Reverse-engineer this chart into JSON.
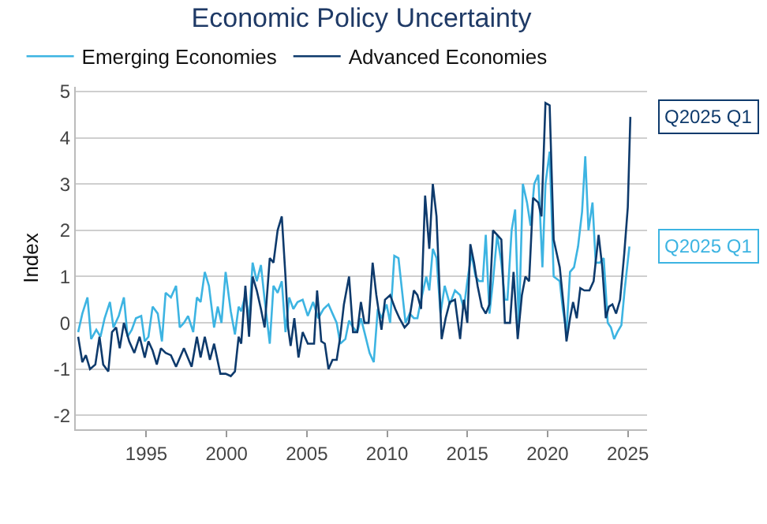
{
  "chart_data": {
    "type": "line",
    "title": "Economic Policy Uncertainty",
    "ylabel": "Index",
    "series": [
      {
        "name": "Emerging Economies",
        "color": "#3db4e2",
        "x": [
          1990.75,
          1991.01,
          1991.33,
          1991.56,
          1991.88,
          1992.14,
          1992.4,
          1992.73,
          1992.95,
          1993.28,
          1993.6,
          1993.83,
          1994.09,
          1994.35,
          1994.68,
          1994.9,
          1995.13,
          1995.39,
          1995.71,
          1995.97,
          1996.2,
          1996.53,
          1996.85,
          1997.08,
          1997.34,
          1997.6,
          1997.92,
          1998.15,
          1998.38,
          1998.64,
          1998.9,
          1999.22,
          1999.45,
          1999.68,
          1999.94,
          2000.26,
          2000.52,
          2000.75,
          2000.91,
          2001.17,
          2001.4,
          2001.62,
          2001.88,
          2002.14,
          2002.37,
          2002.69,
          2002.92,
          2003.18,
          2003.44,
          2003.67,
          2003.9,
          2004.16,
          2004.42,
          2004.74,
          2005.06,
          2005.39,
          2005.71,
          2006.04,
          2006.35,
          2006.6,
          2006.86,
          2007.08,
          2007.4,
          2007.63,
          2007.88,
          2008.14,
          2008.37,
          2008.59,
          2008.91,
          2009.17,
          2009.42,
          2009.65,
          2009.97,
          2010.19,
          2010.45,
          2010.71,
          2010.93,
          2011.15,
          2011.41,
          2011.67,
          2011.89,
          2012.12,
          2012.44,
          2012.63,
          2012.85,
          2013.08,
          2013.33,
          2013.59,
          2013.91,
          2014.23,
          2014.55,
          2014.78,
          2015.0,
          2015.26,
          2015.51,
          2015.74,
          2015.96,
          2016.15,
          2016.38,
          2016.6,
          2016.86,
          2017.12,
          2017.34,
          2017.5,
          2017.76,
          2017.98,
          2018.21,
          2018.46,
          2018.72,
          2018.94,
          2019.17,
          2019.42,
          2019.68,
          2019.87,
          2020.13,
          2020.38,
          2020.76,
          2020.95,
          2021.18,
          2021.4,
          2021.65,
          2021.9,
          2022.15,
          2022.35,
          2022.55,
          2022.8,
          2023.0,
          2023.25,
          2023.5,
          2023.75,
          2023.95,
          2024.15,
          2024.35,
          2024.6,
          2024.8,
          2025.1
        ],
        "values": [
          -0.2,
          0.2,
          0.55,
          -0.35,
          -0.15,
          -0.3,
          0.1,
          0.45,
          -0.1,
          0.15,
          0.55,
          -0.3,
          -0.15,
          0.1,
          0.15,
          -0.4,
          -0.3,
          0.35,
          0.2,
          -0.4,
          0.65,
          0.55,
          0.8,
          -0.1,
          0.0,
          0.15,
          -0.2,
          0.55,
          0.45,
          1.1,
          0.8,
          -0.1,
          0.35,
          0.0,
          1.1,
          0.25,
          -0.25,
          0.35,
          0.25,
          0.6,
          0.05,
          1.3,
          0.9,
          1.25,
          0.5,
          -0.45,
          0.8,
          0.65,
          0.9,
          -0.2,
          0.55,
          0.3,
          0.45,
          0.5,
          0.15,
          0.45,
          0.1,
          0.3,
          0.4,
          0.2,
          0.0,
          -0.45,
          -0.35,
          0.05,
          -0.1,
          -0.2,
          0.1,
          -0.2,
          -0.65,
          -0.85,
          0.3,
          0.1,
          0.4,
          0.0,
          1.45,
          1.4,
          0.7,
          0.0,
          0.2,
          0.1,
          0.1,
          0.5,
          1.0,
          0.7,
          1.6,
          1.4,
          0.2,
          0.8,
          0.4,
          0.7,
          0.6,
          0.3,
          0.9,
          1.5,
          1.0,
          0.9,
          0.9,
          1.9,
          0.2,
          0.9,
          1.9,
          1.3,
          0.5,
          0.5,
          2.0,
          2.45,
          -0.1,
          3.0,
          2.6,
          2.1,
          3.0,
          3.2,
          1.2,
          3.0,
          3.7,
          1.0,
          0.9,
          0.3,
          -0.2,
          1.1,
          1.2,
          1.65,
          2.4,
          3.6,
          2.0,
          2.6,
          1.3,
          1.3,
          1.4,
          0.0,
          -0.1,
          -0.35,
          -0.2,
          -0.05,
          0.7,
          1.65
        ]
      },
      {
        "name": "Advanced Economies",
        "color": "#0e3a6c",
        "x": [
          1990.75,
          1991.01,
          1991.23,
          1991.49,
          1991.82,
          1992.08,
          1992.31,
          1992.63,
          1992.86,
          1993.12,
          1993.34,
          1993.6,
          1993.93,
          1994.25,
          1994.58,
          1994.9,
          1995.13,
          1995.39,
          1995.65,
          1995.91,
          1996.2,
          1996.53,
          1996.85,
          1997.34,
          1997.82,
          1998.15,
          1998.38,
          1998.64,
          1998.96,
          1999.22,
          1999.61,
          1999.94,
          2000.26,
          2000.52,
          2000.75,
          2000.91,
          2001.17,
          2001.4,
          2001.62,
          2001.88,
          2002.14,
          2002.37,
          2002.69,
          2002.92,
          2003.18,
          2003.44,
          2003.67,
          2003.83,
          2003.99,
          2004.22,
          2004.48,
          2004.74,
          2005.06,
          2005.45,
          2005.64,
          2005.9,
          2006.12,
          2006.35,
          2006.6,
          2006.86,
          2007.08,
          2007.31,
          2007.63,
          2007.88,
          2008.14,
          2008.37,
          2008.59,
          2008.85,
          2009.1,
          2009.33,
          2009.65,
          2009.87,
          2010.19,
          2010.51,
          2010.77,
          2011.09,
          2011.35,
          2011.67,
          2011.89,
          2012.12,
          2012.37,
          2012.63,
          2012.85,
          2013.08,
          2013.4,
          2013.65,
          2013.91,
          2014.23,
          2014.55,
          2014.78,
          2015.0,
          2015.19,
          2015.42,
          2015.64,
          2015.9,
          2016.15,
          2016.38,
          2016.6,
          2016.86,
          2017.12,
          2017.34,
          2017.66,
          2017.88,
          2018.14,
          2018.4,
          2018.62,
          2018.85,
          2019.1,
          2019.42,
          2019.62,
          2019.87,
          2020.13,
          2020.38,
          2020.76,
          2021.02,
          2021.18,
          2021.4,
          2021.59,
          2021.82,
          2022.04,
          2022.29,
          2022.61,
          2022.87,
          2023.18,
          2023.41,
          2023.63,
          2023.82,
          2024.04,
          2024.27,
          2024.52,
          2024.78,
          2025.0,
          2025.16
        ],
        "values": [
          -0.3,
          -0.85,
          -0.7,
          -1.0,
          -0.9,
          -0.3,
          -0.9,
          -1.05,
          -0.2,
          -0.1,
          -0.55,
          0.0,
          -0.4,
          -0.65,
          -0.3,
          -0.75,
          -0.4,
          -0.6,
          -0.9,
          -0.55,
          -0.65,
          -0.7,
          -0.95,
          -0.55,
          -0.95,
          -0.3,
          -0.75,
          -0.3,
          -0.8,
          -0.45,
          -1.1,
          -1.1,
          -1.15,
          -1.05,
          -0.3,
          -0.45,
          0.8,
          -0.3,
          1.0,
          0.7,
          0.3,
          -0.1,
          1.4,
          1.3,
          2.0,
          2.3,
          1.0,
          -0.1,
          -0.5,
          0.1,
          -0.75,
          -0.2,
          -0.45,
          -0.45,
          0.7,
          -0.4,
          -0.45,
          -1.0,
          -0.8,
          -0.8,
          -0.3,
          0.4,
          1.0,
          -0.2,
          -0.2,
          0.45,
          0.0,
          0.0,
          1.3,
          0.6,
          -0.15,
          0.5,
          0.6,
          0.3,
          0.1,
          -0.1,
          0.0,
          0.7,
          0.6,
          0.3,
          2.75,
          1.6,
          3.0,
          2.3,
          -0.35,
          0.1,
          0.45,
          0.5,
          -0.35,
          0.5,
          0.0,
          1.7,
          1.3,
          0.8,
          0.35,
          0.2,
          0.4,
          2.0,
          1.9,
          1.8,
          0.0,
          0.0,
          1.1,
          -0.35,
          0.6,
          1.0,
          0.9,
          2.7,
          2.6,
          2.3,
          4.75,
          4.7,
          1.8,
          1.2,
          0.3,
          -0.4,
          0.1,
          0.45,
          0.1,
          0.75,
          0.7,
          0.7,
          0.9,
          1.9,
          1.2,
          0.1,
          0.35,
          0.4,
          0.2,
          0.5,
          1.5,
          2.5,
          4.45
        ]
      }
    ],
    "annotations": [
      {
        "text": "Q2025 Q1",
        "x": 2025.16,
        "y": 4.45
      },
      {
        "text": "Q2025 Q1",
        "x": 2025.1,
        "y": 1.65
      }
    ],
    "xlim": [
      1990.6,
      2026.2
    ],
    "xticks": [
      1995,
      2000,
      2005,
      2010,
      2015,
      2020,
      2025
    ],
    "ylim": [
      -2.3,
      5.1
    ],
    "yticks": [
      -2,
      -1,
      0,
      1,
      2,
      3,
      4,
      5
    ],
    "grid": "y",
    "legend": "top left",
    "line_style": "solid",
    "marker": "none"
  }
}
